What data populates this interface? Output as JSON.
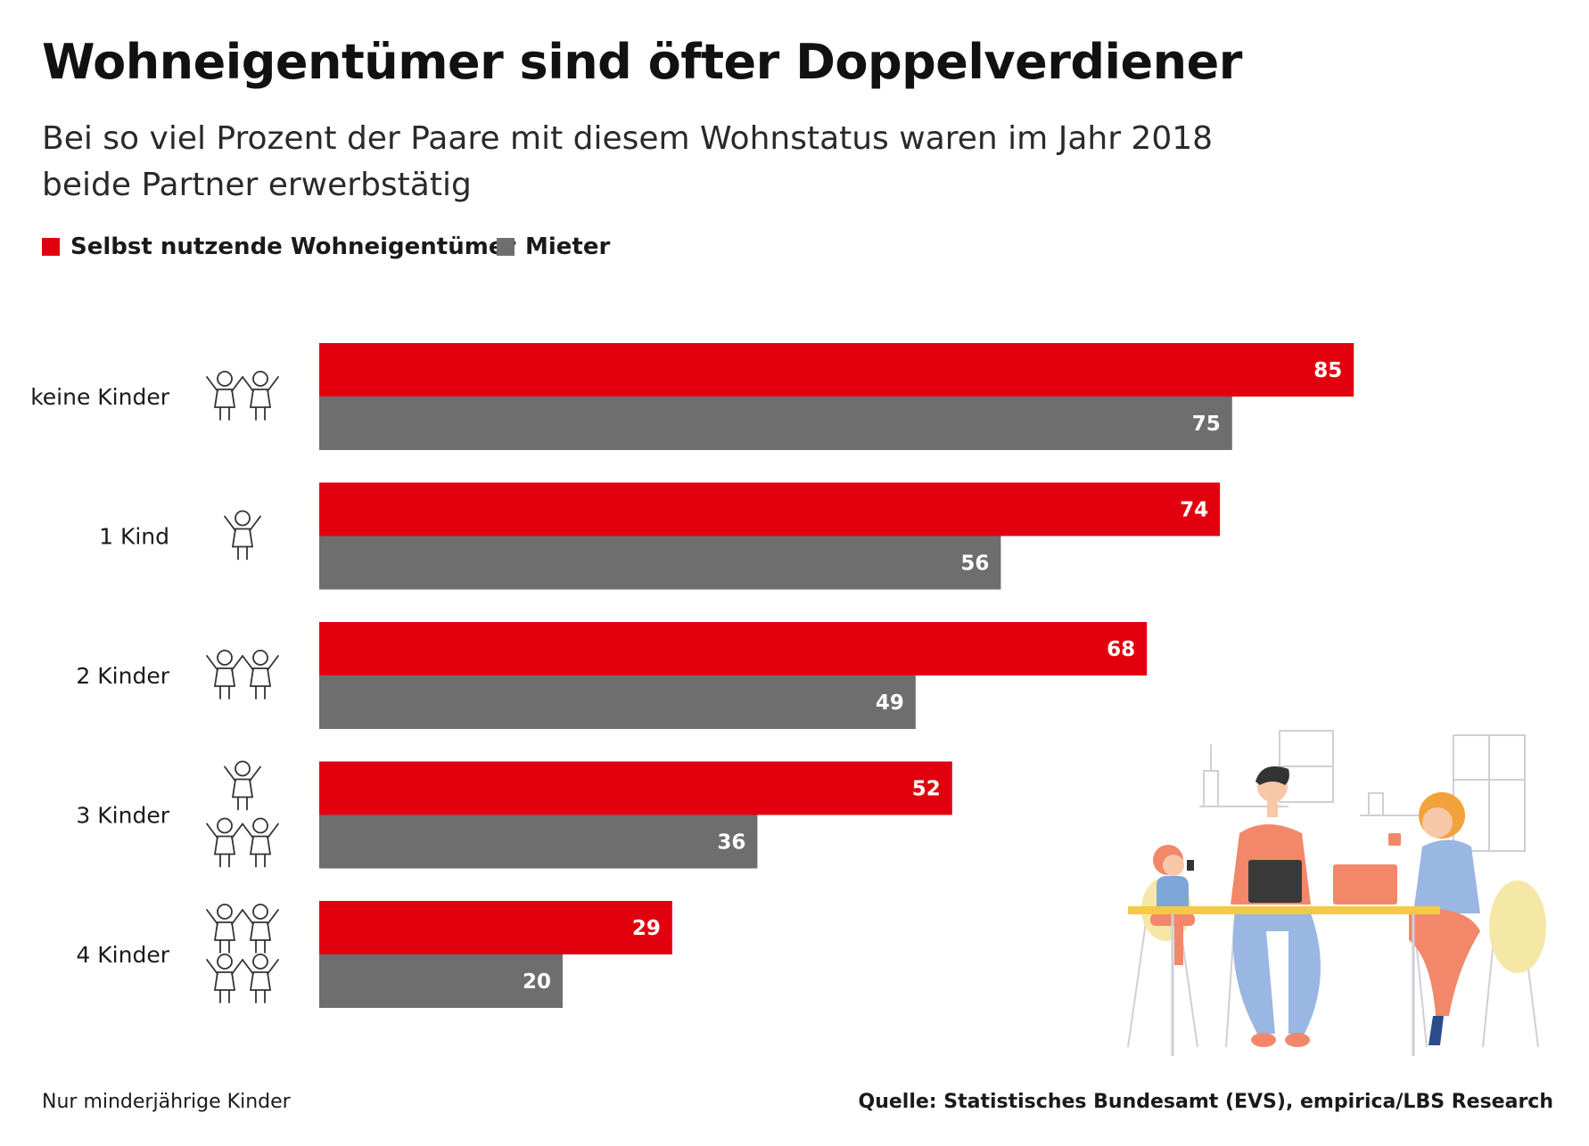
{
  "title": "Wohneigentümer sind öfter Doppelverdiener",
  "subtitle_line1": "Bei so viel Prozent der Paare mit diesem Wohnstatus waren im Jahr 2018",
  "subtitle_line2": "beide Partner erwerbstätig",
  "colors": {
    "owner": "#e2000f",
    "renter": "#6e6e6e"
  },
  "footnote": "Nur minderjährige Kinder",
  "source": "Quelle: Statistisches Bundesamt (EVS), empirica/LBS Research",
  "chart_data": {
    "type": "bar",
    "orientation": "horizontal",
    "title": "Wohneigentümer sind öfter Doppelverdiener",
    "categories": [
      "keine Kinder",
      "1 Kind",
      "2 Kinder",
      "3 Kinder",
      "4 Kinder"
    ],
    "series": [
      {
        "name": "Selbst nutzende Wohneigentümer",
        "color": "#e2000f",
        "values": [
          85,
          74,
          68,
          52,
          29
        ]
      },
      {
        "name": "Mieter",
        "color": "#6e6e6e",
        "values": [
          75,
          56,
          49,
          36,
          20
        ]
      }
    ],
    "xlim": [
      0,
      100
    ],
    "grid": false,
    "legend_position": "top-left",
    "data_labels": true
  },
  "icons": [
    "two-children-icon",
    "one-child-icon",
    "two-children-icon",
    "three-children-icon",
    "four-children-icon"
  ]
}
